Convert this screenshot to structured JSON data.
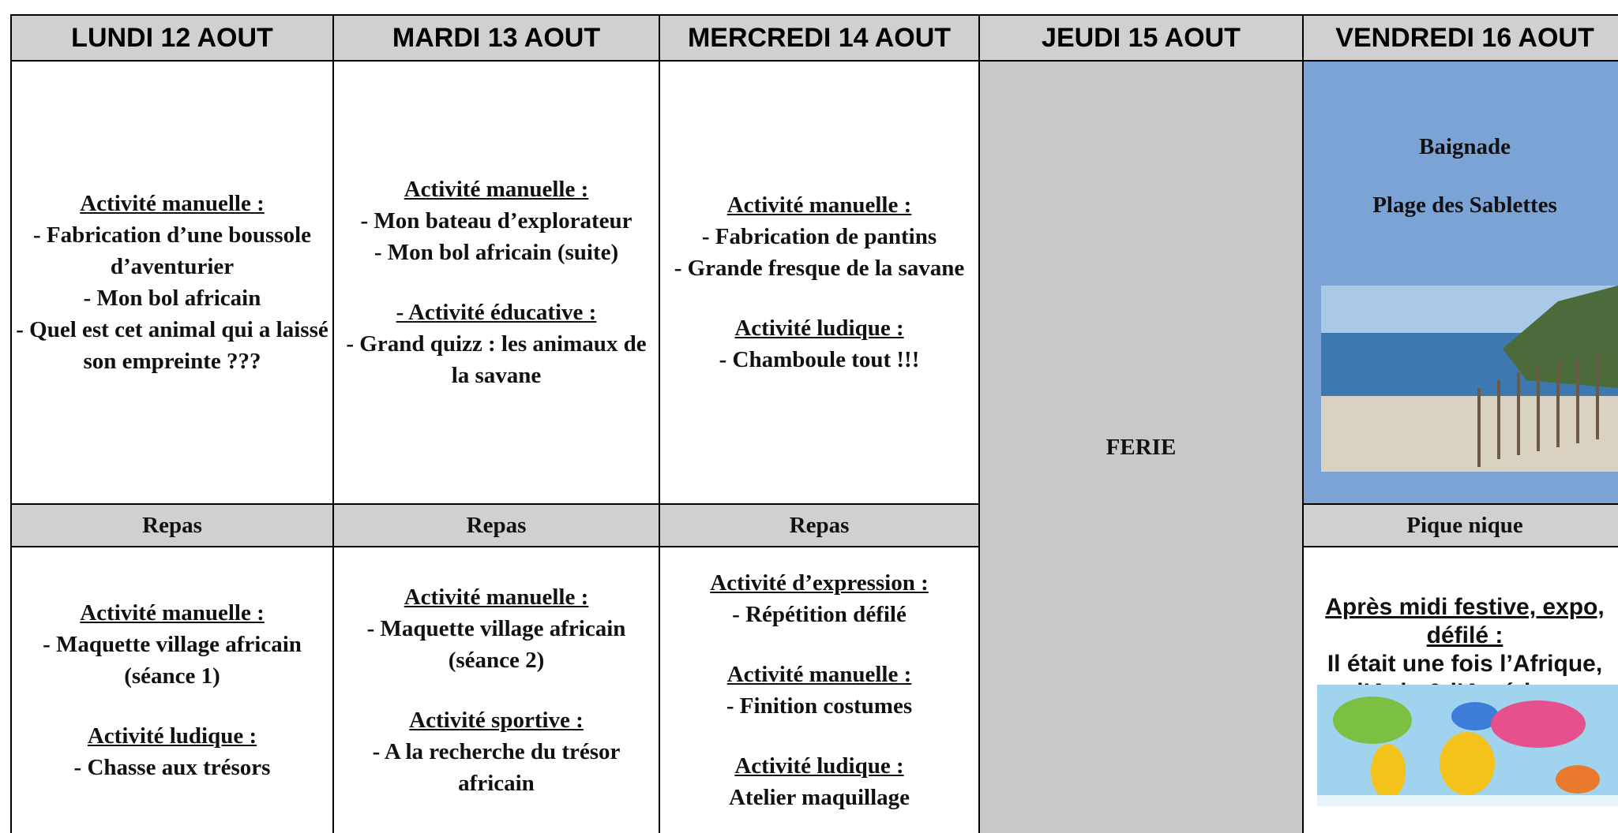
{
  "columns": [
    {
      "header": "LUNDI 12 AOUT",
      "morning": [
        {
          "heading": "Activité manuelle :",
          "lines": [
            "- Fabrication d’une boussole d’aventurier",
            "- Mon bol africain",
            "- Quel est cet animal qui a laissé son empreinte ???"
          ]
        }
      ],
      "lunch": "Repas",
      "afternoon": [
        {
          "heading": "Activité manuelle :",
          "lines": [
            "- Maquette village africain (séance 1)"
          ]
        },
        {
          "heading": "Activité ludique :",
          "lines": [
            "- Chasse aux trésors"
          ]
        }
      ]
    },
    {
      "header": "MARDI 13 AOUT",
      "morning": [
        {
          "heading": "Activité manuelle :",
          "lines": [
            "- Mon bateau d’explorateur",
            "- Mon bol africain (suite)"
          ]
        },
        {
          "heading": "- Activité éducative :",
          "lines": [
            "- Grand quizz : les animaux de la savane"
          ]
        }
      ],
      "lunch": "Repas",
      "afternoon": [
        {
          "heading": "Activité manuelle :",
          "lines": [
            "- Maquette village africain (séance 2)"
          ]
        },
        {
          "heading": "Activité sportive :",
          "lines": [
            "- A la recherche du trésor africain"
          ]
        }
      ]
    },
    {
      "header": "MERCREDI 14 AOUT",
      "morning": [
        {
          "heading": "Activité manuelle :",
          "lines": [
            "- Fabrication de pantins",
            "- Grande fresque de la savane"
          ]
        },
        {
          "heading": "Activité ludique :",
          "lines": [
            "- Chamboule tout !!!"
          ]
        }
      ],
      "lunch": "Repas",
      "afternoon": [
        {
          "heading": "Activité d’expression :",
          "lines": [
            "- Répétition défilé"
          ]
        },
        {
          "heading": "Activité manuelle :",
          "lines": [
            "- Finition costumes"
          ]
        },
        {
          "heading": "Activité ludique :",
          "lines": [
            "Atelier maquillage"
          ]
        }
      ]
    },
    {
      "header": "JEUDI 15 AOUT",
      "holiday": "FERIE"
    },
    {
      "header": "VENDREDI 16 AOUT",
      "morning": [
        {
          "lines": [
            "Baignade",
            "Plage des Sablettes"
          ]
        }
      ],
      "lunch": "Pique nique",
      "afternoon": [
        {
          "heading": "Après midi festive, expo, défilé :",
          "lines": [
            "Il était une fois l’Afrique, l’Asie & l’Amérique"
          ]
        }
      ]
    }
  ]
}
